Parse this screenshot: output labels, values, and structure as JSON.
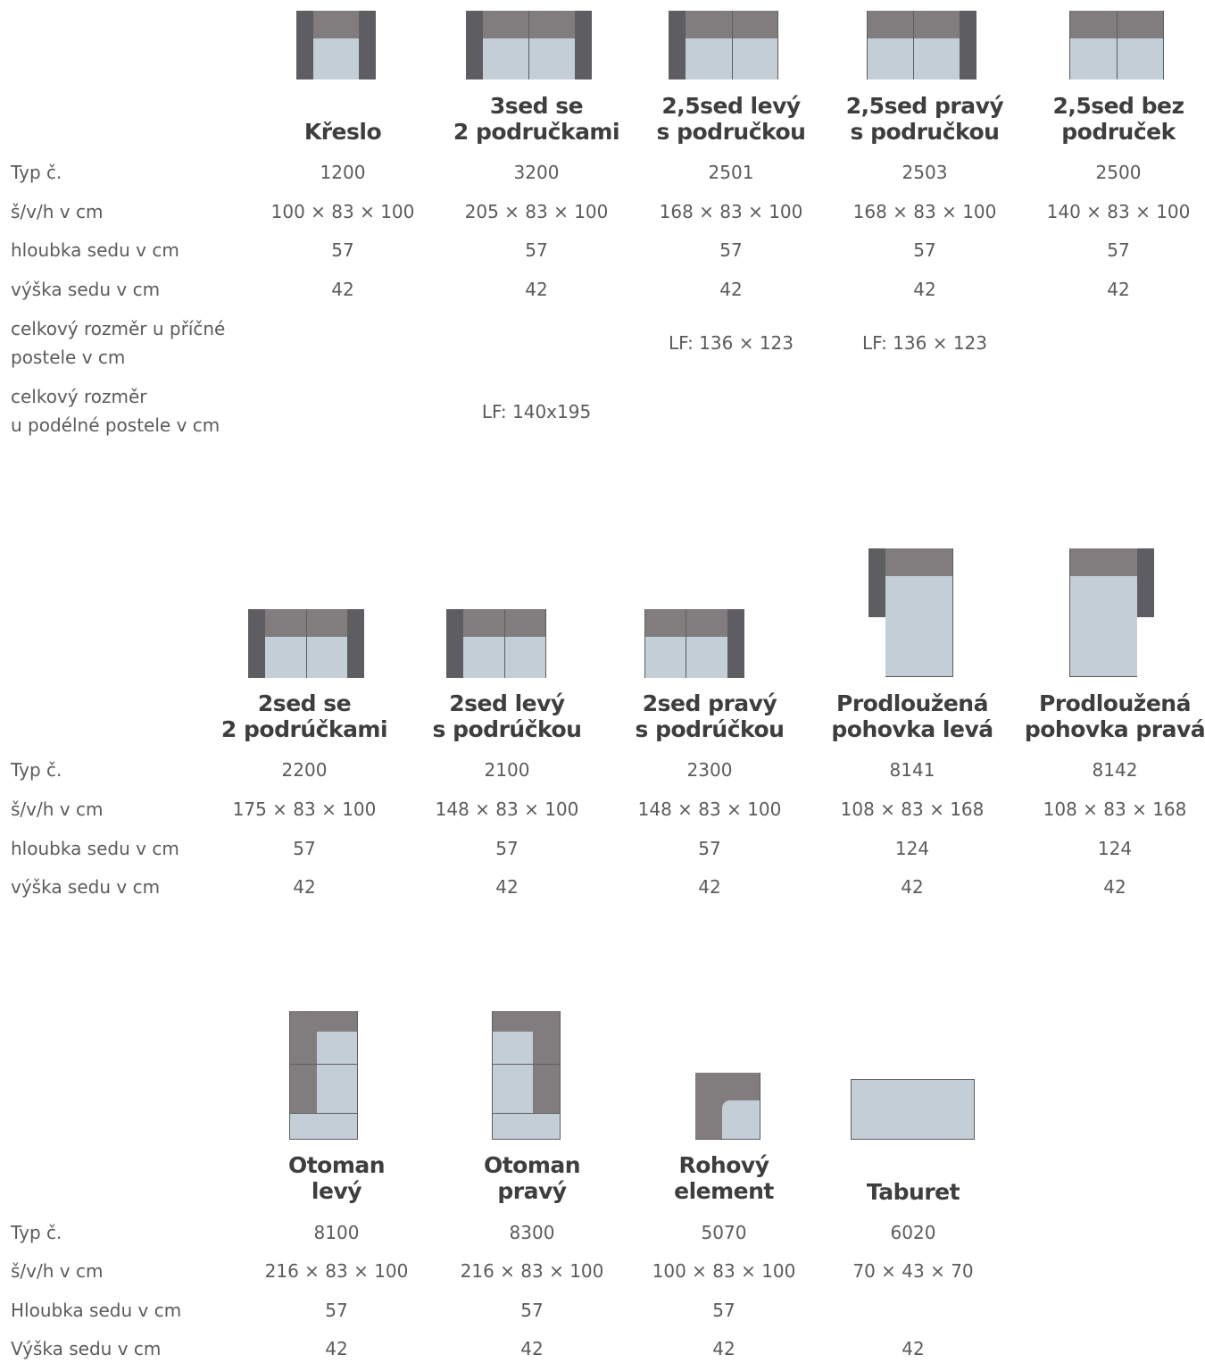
{
  "colors": {
    "frame": "#5e5d61",
    "back": "#817d7e",
    "seat": "#c3ced6",
    "text": "#5b5b5b",
    "heading": "#3e3e40"
  },
  "sections": [
    {
      "labels": [
        "Typ č.",
        "š/v/h v cm",
        "hloubka sedu v cm",
        "výška sedu v cm",
        "celkový rozměr u příčné\npostele v cm",
        "celkový rozměr\nu podélné postele v cm"
      ],
      "items": [
        {
          "icon": "armchair-icon",
          "name": "Křeslo",
          "type": "1200",
          "dims": "100 × 83 × 100",
          "depth": "57",
          "height": "42",
          "cross_bed": "",
          "long_bed": ""
        },
        {
          "icon": "sofa-3-seat-icon",
          "name": "3sed se\n2 područkami",
          "type": "3200",
          "dims": "205 × 83 × 100",
          "depth": "57",
          "height": "42",
          "cross_bed": "",
          "long_bed": "LF: 140x195"
        },
        {
          "icon": "sofa-25-left-icon",
          "name": "2,5sed levý\ns područkou",
          "type": "2501",
          "dims": "168 × 83 × 100",
          "depth": "57",
          "height": "42",
          "cross_bed": "LF: 136 × 123",
          "long_bed": ""
        },
        {
          "icon": "sofa-25-right-icon",
          "name": "2,5sed pravý\ns područkou",
          "type": "2503",
          "dims": "168 × 83 × 100",
          "depth": "57",
          "height": "42",
          "cross_bed": "LF: 136 × 123",
          "long_bed": ""
        },
        {
          "icon": "sofa-25-no-arm-icon",
          "name": "2,5sed bez\npodruček",
          "type": "2500",
          "dims": "140 × 83 × 100",
          "depth": "57",
          "height": "42",
          "cross_bed": "",
          "long_bed": ""
        }
      ]
    },
    {
      "labels": [
        "Typ č.",
        "š/v/h v cm",
        "hloubka sedu v cm",
        "výška sedu v cm"
      ],
      "items": [
        {
          "icon": "sofa-2-seat-icon",
          "name": "2sed se\n2 podrúčkami",
          "type": "2200",
          "dims": "175 × 83 × 100",
          "depth": "57",
          "height": "42"
        },
        {
          "icon": "sofa-2-left-icon",
          "name": "2sed levý\ns podrúčkou",
          "type": "2100",
          "dims": "148 × 83 × 100",
          "depth": "57",
          "height": "42"
        },
        {
          "icon": "sofa-2-right-icon",
          "name": "2sed pravý\ns podrúčkou",
          "type": "2300",
          "dims": "148 × 83 × 100",
          "depth": "57",
          "height": "42"
        },
        {
          "icon": "chaise-left-icon",
          "name": "Prodloužená\npohovka levá",
          "type": "8141",
          "dims": "108 × 83 × 168",
          "depth": "124",
          "height": "42"
        },
        {
          "icon": "chaise-right-icon",
          "name": "Prodloužená\npohovka pravá",
          "type": "8142",
          "dims": "108 × 83 × 168",
          "depth": "124",
          "height": "42"
        }
      ]
    },
    {
      "labels": [
        "Typ č.",
        "š/v/h v cm",
        "Hloubka sedu v cm",
        "Výška sedu v cm"
      ],
      "items": [
        {
          "icon": "ottoman-left-icon",
          "name": "Otoman\nlevý",
          "type": "8100",
          "dims": "216 × 83 × 100",
          "depth": "57",
          "height": "42"
        },
        {
          "icon": "ottoman-right-icon",
          "name": "Otoman\npravý",
          "type": "8300",
          "dims": "216 × 83 × 100",
          "depth": "57",
          "height": "42"
        },
        {
          "icon": "corner-element-icon",
          "name": "Rohový\nelement",
          "type": "5070",
          "dims": "100 × 83 × 100",
          "depth": "57",
          "height": "42"
        },
        {
          "icon": "stool-icon",
          "name": "Taburet",
          "type": "6020",
          "dims": "70 × 43 × 70",
          "depth": "",
          "height": "42"
        }
      ]
    }
  ]
}
